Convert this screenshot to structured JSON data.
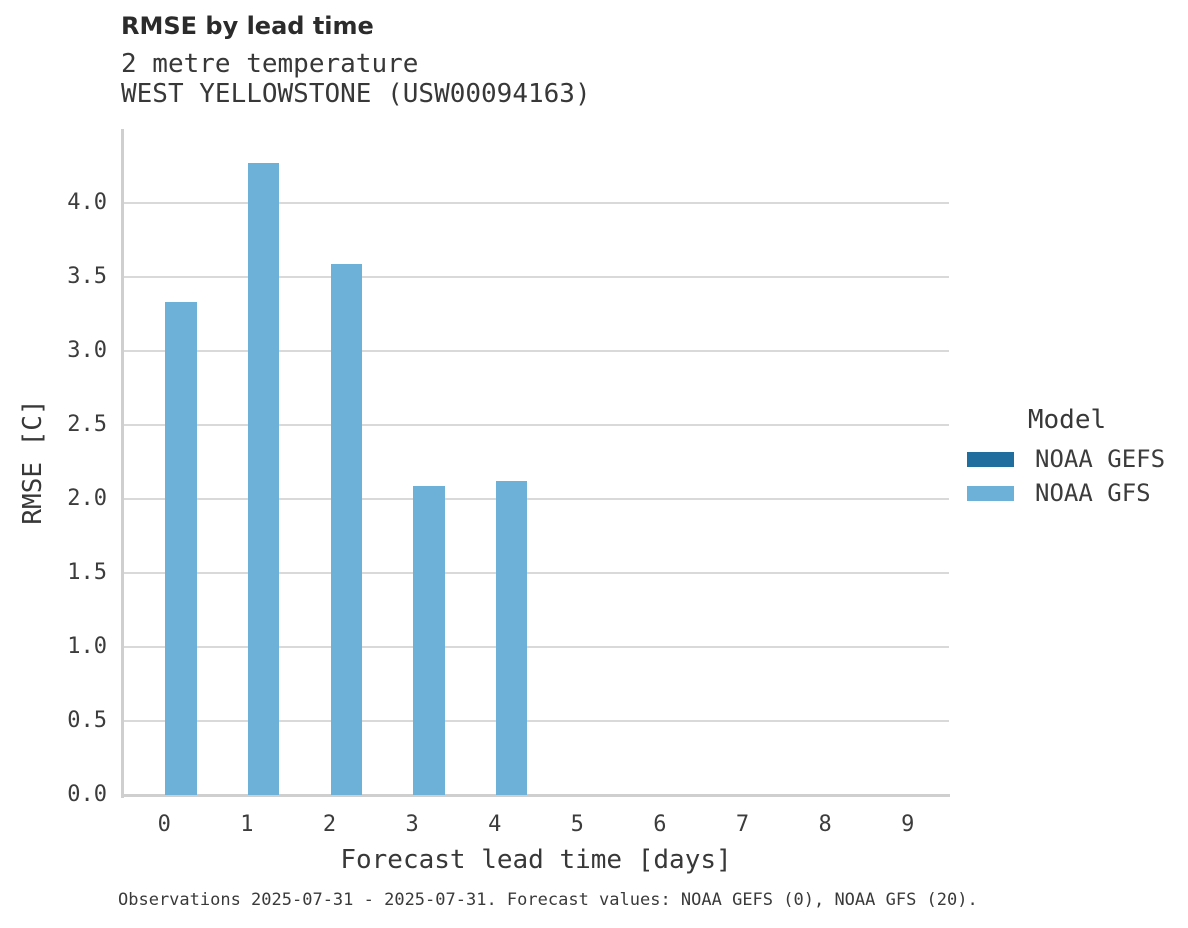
{
  "header": {
    "title": "RMSE by lead time",
    "subtitle_line1": "2 metre temperature",
    "subtitle_line2": "WEST YELLOWSTONE (USW00094163)"
  },
  "chart_data": {
    "type": "bar",
    "title": "RMSE by lead time",
    "subtitle": [
      "2 metre temperature",
      "WEST YELLOWSTONE (USW00094163)"
    ],
    "xlabel": "Forecast lead time [days]",
    "ylabel": "RMSE [C]",
    "categories": [
      "0",
      "1",
      "2",
      "3",
      "4",
      "5",
      "6",
      "7",
      "8",
      "9"
    ],
    "series": [
      {
        "name": "NOAA GEFS",
        "color": "#206e9d",
        "values": [
          null,
          null,
          null,
          null,
          null,
          null,
          null,
          null,
          null,
          null
        ]
      },
      {
        "name": "NOAA GFS",
        "color": "#6db1d8",
        "values": [
          3.33,
          4.27,
          3.59,
          2.09,
          2.12,
          null,
          null,
          null,
          null,
          null
        ]
      }
    ],
    "ylim": [
      0,
      4.5
    ],
    "yticks": [
      0,
      0.5,
      1,
      1.5,
      2,
      2.5,
      3,
      3.5,
      4
    ],
    "ytick_labels": [
      "0.0",
      "0.5",
      "1.0",
      "1.5",
      "2.0",
      "2.5",
      "3.0",
      "3.5",
      "4.0"
    ],
    "grid": true,
    "legend_title": "Model",
    "legend_position": "right"
  },
  "legend": {
    "title": "Model",
    "entries": [
      {
        "label": "NOAA GEFS",
        "color": "#206e9d"
      },
      {
        "label": "NOAA GFS",
        "color": "#6db1d8"
      }
    ]
  },
  "caption": "Observations 2025-07-31 - 2025-07-31. Forecast values: NOAA GEFS (0), NOAA GFS (20)."
}
